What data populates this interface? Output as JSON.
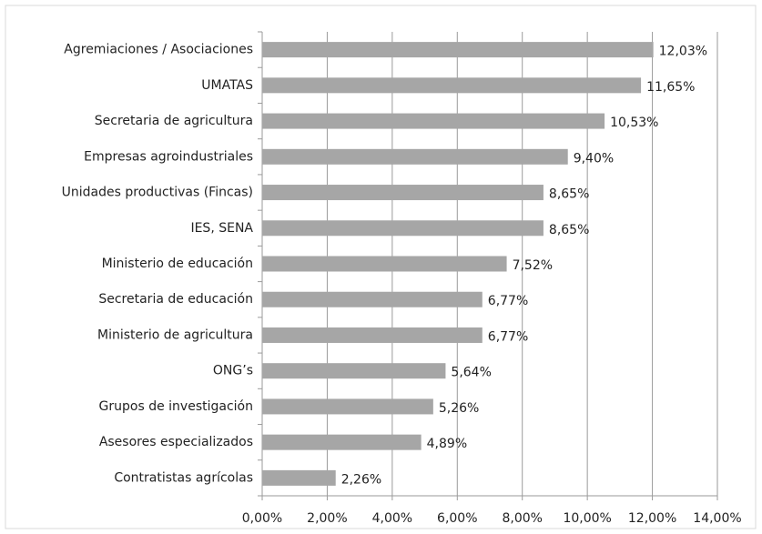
{
  "chart_data": {
    "type": "bar",
    "orientation": "horizontal",
    "categories": [
      "Agremiaciones / Asociaciones",
      "UMATAS",
      "Secretaria de agricultura",
      "Empresas agroindustriales",
      "Unidades productivas (Fincas)",
      "IES, SENA",
      "Ministerio de educación",
      "Secretaria de educación",
      "Ministerio de agricultura",
      "ONG’s",
      "Grupos de investigación",
      "Asesores especializados",
      "Contratistas agrícolas"
    ],
    "values": [
      12.03,
      11.65,
      10.53,
      9.4,
      8.65,
      8.65,
      7.52,
      6.77,
      6.77,
      5.64,
      5.26,
      4.89,
      2.26
    ],
    "value_labels": [
      "12,03%",
      "11,65%",
      "10,53%",
      "9,40%",
      "8,65%",
      "8,65%",
      "7,52%",
      "6,77%",
      "6,77%",
      "5,64%",
      "5,26%",
      "4,89%",
      "2,26%"
    ],
    "color": "#a6a6a6",
    "xlim": [
      0,
      14
    ],
    "xticks": [
      {
        "value": 0,
        "label": "0,00%"
      },
      {
        "value": 2,
        "label": "2,00%"
      },
      {
        "value": 4,
        "label": "4,00%"
      },
      {
        "value": 6,
        "label": "6,00%"
      },
      {
        "value": 8,
        "label": "8,00%"
      },
      {
        "value": 10,
        "label": "10,00%"
      },
      {
        "value": 12,
        "label": "12,00%"
      },
      {
        "value": 14,
        "label": "14,00%"
      }
    ],
    "grid": true
  }
}
